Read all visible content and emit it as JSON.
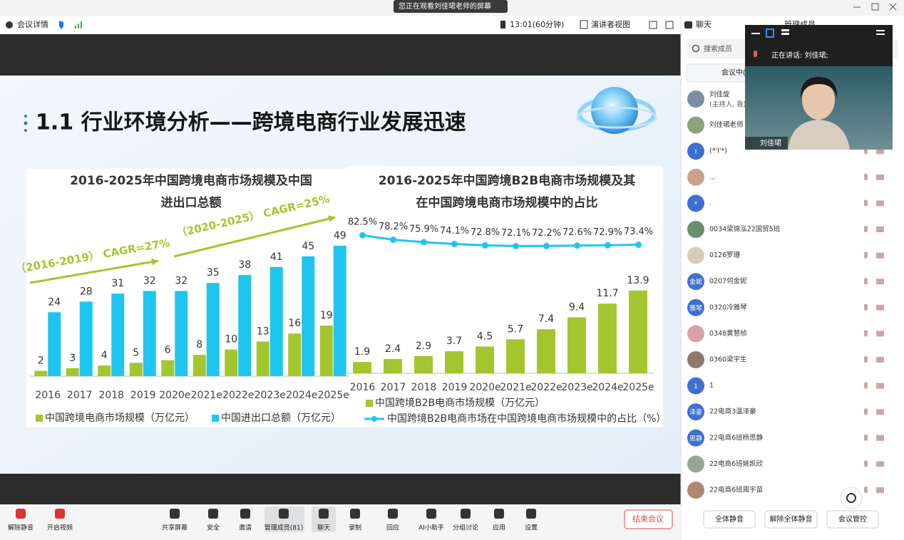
{
  "top_bar": {
    "banner": "您正在观看刘佳珺老师的屏幕",
    "meeting_info": "会议详情",
    "timer": "13:01(60分钟)",
    "view": "演讲者视图"
  },
  "slide": {
    "title": "1.1 行业环境分析——跨境电商行业发展迅速"
  },
  "chart_data": [
    {
      "type": "bar",
      "title": [
        "2016-2025年中国跨境电商市场规模及中国",
        "进出口总额"
      ],
      "categories": [
        "2016",
        "2017",
        "2018",
        "2019",
        "2020e",
        "2021e",
        "2022e",
        "2023e",
        "2024e",
        "2025e"
      ],
      "series": [
        {
          "name": "中国跨境电商市场规模（万亿元）",
          "color": "#a3c62f",
          "values": [
            2,
            3,
            4,
            5,
            6,
            8,
            10,
            13,
            16,
            19
          ]
        },
        {
          "name": "中国进出口总额（万亿元）",
          "color": "#1ec6ef",
          "values": [
            24,
            28,
            31,
            32,
            32,
            35,
            38,
            41,
            45,
            49
          ]
        }
      ],
      "annotations": [
        "（2016-2019） CAGR=27%",
        "（2020-2025） CAGR=25%"
      ],
      "ylim": [
        0,
        61
      ]
    },
    {
      "type": "combo",
      "title": [
        "2016-2025年中国跨境B2B电商市场规模及其",
        "在中国跨境电商市场规模中的占比"
      ],
      "categories": [
        "2016",
        "2017",
        "2018",
        "2019",
        "2020e",
        "2021e",
        "2022e",
        "2023e",
        "2024e",
        "2025e"
      ],
      "series": [
        {
          "name": "中国跨境B2B电商市场规模（万亿元）",
          "color": "#a3c62f",
          "values": [
            1.9,
            2.4,
            2.9,
            3.7,
            4.5,
            5.7,
            7.4,
            9.4,
            11.7,
            13.9
          ]
        },
        {
          "name": "中国跨境B2B电商市场在中国跨境电商市场规模中的占比（%）",
          "color": "#1ec6ef",
          "axis": "y2",
          "values": [
            82.5,
            78.2,
            75.9,
            74.1,
            72.8,
            72.1,
            72.2,
            72.6,
            72.9,
            73.4
          ],
          "value_labels": [
            "82.5%",
            "78.2%",
            "75.9%",
            "74.1%",
            "72.8%",
            "72.1%",
            "72.2%",
            "72.6%",
            "72.9%",
            "73.4%"
          ]
        }
      ],
      "ylim": [
        0,
        28
      ],
      "y2lim": [
        -50,
        110
      ]
    }
  ],
  "panel": {
    "tabs": [
      "聊天",
      "管理成员"
    ],
    "search": "搜索成员",
    "list_tab": "会议中(",
    "members": [
      {
        "name": "刘佳旋",
        "role": "(主持人, 我)"
      },
      {
        "name": "刘佳珺老师"
      },
      {
        "name": "(*'I'*)",
        "avatar": "I"
      },
      {
        "name": "..."
      },
      {
        "name": ".",
        "avatar": "*"
      },
      {
        "name": "0034梁锦泓22国贸5班"
      },
      {
        "name": "0126罗珊"
      },
      {
        "name": "0207何金妮",
        "avatar": "金妮"
      },
      {
        "name": "0320冷雅琴",
        "avatar": "雅琴"
      },
      {
        "name": "0348黄慧桢"
      },
      {
        "name": "0360梁宇生"
      },
      {
        "name": "1",
        "avatar": "1"
      },
      {
        "name": "22电商3温泽豪",
        "avatar": "泽豪"
      },
      {
        "name": "22电商6班杨思静",
        "avatar": "思静"
      },
      {
        "name": "22电商6班姚凯欣"
      },
      {
        "name": "22电商6班周宇苗"
      }
    ],
    "buttons": [
      "全体静音",
      "解除全体静音",
      "会议管控"
    ]
  },
  "video": {
    "speaking": "正在讲话:  刘佳珺;",
    "name": "刘佳珺"
  },
  "toolbar": {
    "items": [
      "解除静音",
      "开启视频",
      "共享屏幕",
      "安全",
      "邀请",
      "管理成员(81)",
      "聊天",
      "录制",
      "回应",
      "AI小助手",
      "分组讨论",
      "应用",
      "设置"
    ],
    "end": "结束会议"
  }
}
